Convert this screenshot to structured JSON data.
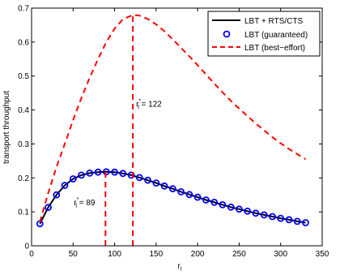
{
  "chart_data": {
    "type": "line",
    "xlabel": "r",
    "xlabel_subscript": "l",
    "ylabel": "transport throughput",
    "xlim": [
      0,
      350
    ],
    "ylim": [
      0,
      0.7
    ],
    "xticks": [
      0,
      50,
      100,
      150,
      200,
      250,
      300,
      350
    ],
    "yticks": [
      0,
      0.1,
      0.2,
      0.3,
      0.4,
      0.5,
      0.6,
      0.7
    ],
    "grid": false,
    "legend_position": "top-right",
    "series": [
      {
        "name": "LBT + RTS/CTS",
        "style": "solid",
        "color": "#000000",
        "x": [
          10,
          20,
          30,
          40,
          50,
          60,
          70,
          80,
          89,
          100,
          110,
          120,
          130,
          140,
          150,
          160,
          170,
          180,
          190,
          200,
          210,
          220,
          230,
          240,
          250,
          260,
          270,
          280,
          290,
          300,
          310,
          320,
          330
        ],
        "values": [
          0.065,
          0.113,
          0.15,
          0.178,
          0.197,
          0.208,
          0.214,
          0.217,
          0.218,
          0.217,
          0.213,
          0.208,
          0.201,
          0.193,
          0.185,
          0.176,
          0.168,
          0.159,
          0.151,
          0.143,
          0.135,
          0.128,
          0.121,
          0.114,
          0.108,
          0.102,
          0.096,
          0.091,
          0.086,
          0.081,
          0.077,
          0.072,
          0.068
        ]
      },
      {
        "name": "LBT (guaranteed)",
        "style": "markers",
        "marker": "circle",
        "color": "#0000ff",
        "x": [
          10,
          20,
          30,
          40,
          50,
          60,
          70,
          80,
          90,
          100,
          110,
          120,
          130,
          140,
          150,
          160,
          170,
          180,
          190,
          200,
          210,
          220,
          230,
          240,
          250,
          260,
          270,
          280,
          290,
          300,
          310,
          320,
          330
        ],
        "values": [
          0.065,
          0.113,
          0.15,
          0.178,
          0.197,
          0.208,
          0.214,
          0.217,
          0.218,
          0.217,
          0.213,
          0.208,
          0.201,
          0.193,
          0.185,
          0.176,
          0.168,
          0.159,
          0.151,
          0.143,
          0.135,
          0.128,
          0.121,
          0.114,
          0.108,
          0.102,
          0.096,
          0.091,
          0.086,
          0.081,
          0.077,
          0.072,
          0.068
        ]
      },
      {
        "name": "LBT (best−effort)",
        "style": "dashed",
        "color": "#ff0000",
        "x": [
          10,
          20,
          30,
          40,
          50,
          60,
          70,
          80,
          90,
          100,
          110,
          122,
          130,
          140,
          150,
          160,
          170,
          180,
          190,
          200,
          210,
          220,
          230,
          240,
          250,
          260,
          270,
          280,
          290,
          300,
          310,
          320,
          330
        ],
        "values": [
          0.07,
          0.155,
          0.232,
          0.3,
          0.37,
          0.435,
          0.495,
          0.55,
          0.6,
          0.64,
          0.667,
          0.68,
          0.678,
          0.668,
          0.652,
          0.632,
          0.608,
          0.583,
          0.558,
          0.532,
          0.505,
          0.478,
          0.452,
          0.427,
          0.404,
          0.382,
          0.36,
          0.34,
          0.32,
          0.302,
          0.285,
          0.27,
          0.255
        ]
      }
    ],
    "annotations": [
      {
        "id": "r89",
        "prefix": "r",
        "subscript": "l",
        "superscript": "*",
        "text": " = 89",
        "x": 89,
        "line_top": 0.218,
        "color": "#ff0000",
        "style": "dashed"
      },
      {
        "id": "r122",
        "prefix": "r",
        "subscript": "l",
        "superscript": "*",
        "text": " = 122",
        "x": 122,
        "line_top": 0.68,
        "color": "#ff0000",
        "style": "dashed"
      }
    ]
  }
}
